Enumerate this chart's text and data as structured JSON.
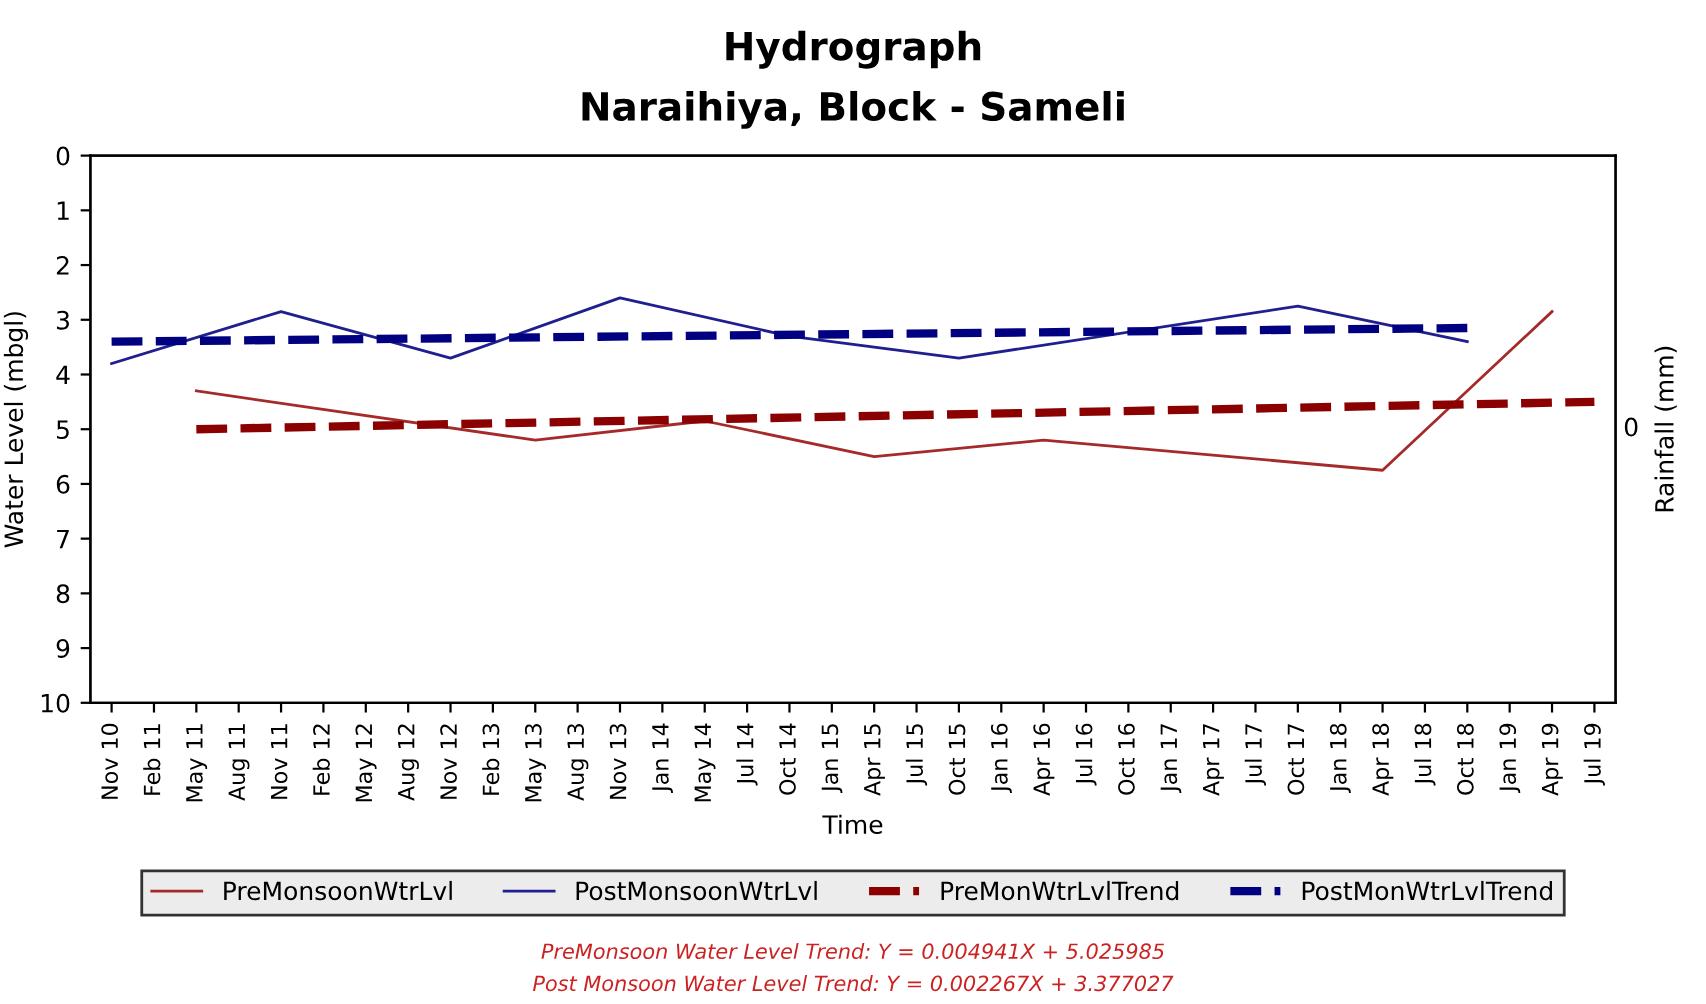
{
  "chart_data": {
    "type": "line",
    "title": "Hydrograph",
    "subtitle": "Naraihiya, Block - Sameli",
    "xlabel": "Time",
    "ylabel": "Water Level (mbgl)",
    "y2label": "Rainfall (mm)",
    "categories": [
      "Nov 10",
      "Feb 11",
      "May 11",
      "Aug 11",
      "Nov 11",
      "Feb 12",
      "May 12",
      "Aug 12",
      "Nov 12",
      "Feb 13",
      "May 13",
      "Aug 13",
      "Nov 13",
      "Jan 14",
      "May 14",
      "Jul 14",
      "Oct 14",
      "Jan 15",
      "Apr 15",
      "Jul 15",
      "Oct 15",
      "Jan 16",
      "Apr 16",
      "Jul 16",
      "Oct 16",
      "Jan 17",
      "Apr 17",
      "Jul 17",
      "Oct 17",
      "Jan 18",
      "Apr 18",
      "Jul 18",
      "Oct 18",
      "Jan 19",
      "Apr 19",
      "Jul 19"
    ],
    "series": [
      {
        "name": "PreMonsoonWtrLvl",
        "color": "#a52a2a",
        "line_style": "solid",
        "values": [
          null,
          null,
          4.3,
          null,
          null,
          null,
          null,
          null,
          null,
          null,
          5.2,
          null,
          null,
          null,
          4.85,
          null,
          null,
          null,
          5.5,
          null,
          null,
          null,
          5.2,
          null,
          null,
          null,
          null,
          null,
          null,
          null,
          5.75,
          null,
          null,
          null,
          2.85,
          null
        ]
      },
      {
        "name": "PostMonsoonWtrLvl",
        "color": "#1f1f8f",
        "line_style": "solid",
        "values": [
          3.8,
          null,
          null,
          null,
          2.85,
          null,
          null,
          null,
          3.7,
          null,
          null,
          null,
          2.6,
          null,
          null,
          null,
          3.3,
          null,
          null,
          null,
          3.7,
          null,
          null,
          null,
          null,
          null,
          null,
          null,
          2.75,
          null,
          null,
          null,
          3.4,
          null,
          null,
          null
        ]
      },
      {
        "name": "PreMonWtrLvlTrend",
        "color": "#8b0000",
        "line_style": "dashed",
        "values": [
          null,
          null,
          5.0,
          null,
          null,
          null,
          null,
          null,
          null,
          null,
          null,
          null,
          null,
          null,
          null,
          null,
          null,
          null,
          null,
          null,
          null,
          null,
          null,
          null,
          null,
          null,
          null,
          null,
          null,
          null,
          null,
          null,
          null,
          null,
          null,
          4.5
        ]
      },
      {
        "name": "PostMonWtrLvlTrend",
        "color": "#000080",
        "line_style": "dashed",
        "values": [
          3.4,
          null,
          null,
          null,
          null,
          null,
          null,
          null,
          null,
          null,
          null,
          null,
          null,
          null,
          null,
          null,
          null,
          null,
          null,
          null,
          null,
          null,
          null,
          null,
          null,
          null,
          null,
          null,
          null,
          null,
          null,
          null,
          3.15,
          null,
          null,
          null
        ]
      }
    ],
    "ylim": [
      10,
      0
    ],
    "yticks": [
      0,
      1,
      2,
      3,
      4,
      5,
      6,
      7,
      8,
      9,
      10
    ],
    "grid": false,
    "legend": "bottom",
    "marker": "none",
    "annotations": [
      "0",
      "PreMonsoon Water Level Trend: Y = 0.004941X + 5.025985",
      "Post Monsoon Water Level Trend: Y = 0.002267X + 3.377027"
    ]
  }
}
